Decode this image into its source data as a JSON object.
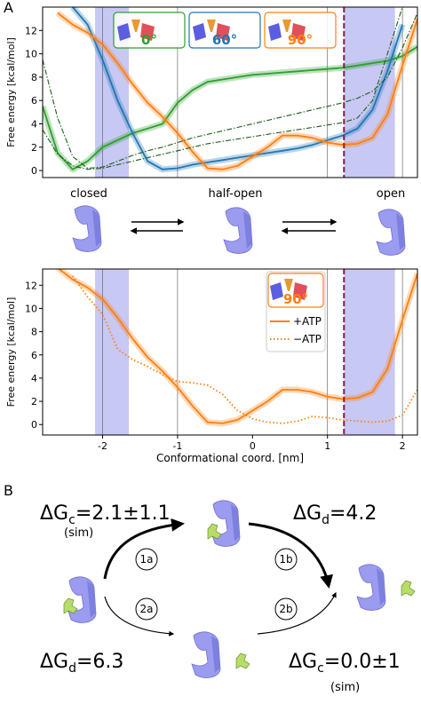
{
  "panel_labels": [
    "A",
    "B"
  ],
  "chart_data": [
    {
      "type": "line",
      "ylabel": "Free energy [kcal/mol]",
      "x": [
        -2.8,
        -2.6,
        -2.4,
        -2.2,
        -2.0,
        -1.8,
        -1.6,
        -1.4,
        -1.2,
        -1.0,
        -0.8,
        -0.6,
        -0.4,
        -0.2,
        0,
        0.2,
        0.4,
        0.6,
        0.8,
        1.0,
        1.2,
        1.4,
        1.6,
        1.8,
        2.0,
        2.2
      ],
      "xlim": [
        -2.8,
        2.2
      ],
      "ylim": [
        -0.6,
        14
      ],
      "yticks": [
        0,
        2,
        4,
        6,
        8,
        10,
        12
      ],
      "shaded_regions": [
        [
          -2.1,
          -1.65
        ],
        [
          1.22,
          1.9
        ]
      ],
      "vlines": [
        -2,
        -1,
        1,
        2
      ],
      "highlight_line": 1.22,
      "series": [
        {
          "name": "0°",
          "color": "#2ca02c",
          "dash": "solid",
          "values": [
            5.5,
            1.5,
            0.1,
            0.8,
            2.0,
            2.6,
            3.2,
            3.6,
            4.0,
            5.8,
            6.9,
            7.6,
            7.8,
            8.0,
            8.2,
            8.3,
            8.4,
            8.5,
            8.6,
            8.7,
            8.8,
            9.0,
            9.2,
            9.4,
            9.8,
            10.6
          ]
        },
        {
          "name": "60°",
          "color": "#1f77b4",
          "dash": "solid",
          "values": [
            null,
            null,
            14,
            12.5,
            9.5,
            6.0,
            3.2,
            0.8,
            0.1,
            0.2,
            0.5,
            0.7,
            0.9,
            1.1,
            1.3,
            1.5,
            1.7,
            1.9,
            2.2,
            2.6,
            3.0,
            3.6,
            5.2,
            8.5,
            12.5,
            null
          ]
        },
        {
          "name": "90°",
          "color": "#ff7f0e",
          "dash": "solid",
          "values": [
            null,
            13.5,
            12.5,
            11.8,
            10.8,
            9.2,
            7.4,
            5.8,
            4.6,
            3.2,
            1.6,
            0.2,
            0.1,
            0.4,
            1.2,
            2.0,
            3.0,
            3.0,
            2.8,
            2.4,
            2.2,
            2.3,
            2.8,
            4.8,
            9.0,
            13.0
          ]
        },
        {
          "color": "#1a5e1a",
          "dash": "dashdot",
          "values": [
            9.5,
            4.5,
            1.2,
            0.2,
            0.3,
            0.8,
            1.3,
            1.7,
            2.0,
            2.4,
            2.8,
            3.1,
            3.4,
            3.7,
            4.0,
            4.3,
            4.6,
            4.9,
            5.2,
            5.5,
            5.8,
            6.2,
            6.8,
            8.0,
            10.5,
            13.5
          ]
        },
        {
          "color": "#1a5e1a",
          "dash": "dashdot",
          "values": [
            3.5,
            1.4,
            0.4,
            0.1,
            0.2,
            0.5,
            0.8,
            1.1,
            1.4,
            1.7,
            2.0,
            2.3,
            2.5,
            2.7,
            2.9,
            3.1,
            3.3,
            3.5,
            3.7,
            3.9,
            4.1,
            4.5,
            6.0,
            10.0,
            14,
            null
          ]
        }
      ]
    },
    {
      "type": "line",
      "ylabel": "Free energy [kcal/mol]",
      "xlabel": "Conformational coord. [nm]",
      "legend_title": "90°",
      "x": [
        -2.8,
        -2.6,
        -2.4,
        -2.2,
        -2.0,
        -1.8,
        -1.6,
        -1.4,
        -1.2,
        -1.0,
        -0.8,
        -0.6,
        -0.4,
        -0.2,
        0,
        0.2,
        0.4,
        0.6,
        0.8,
        1.0,
        1.2,
        1.4,
        1.6,
        1.8,
        2.0,
        2.2
      ],
      "xlim": [
        -2.8,
        2.2
      ],
      "ylim": [
        -0.9,
        13.4
      ],
      "xticks": [
        -2,
        -1,
        0,
        1,
        2
      ],
      "yticks": [
        0,
        2,
        4,
        6,
        8,
        10,
        12
      ],
      "shaded_regions": [
        [
          -2.1,
          -1.65
        ],
        [
          1.22,
          1.9
        ]
      ],
      "vlines": [
        -2,
        -1,
        1,
        2
      ],
      "highlight_line": 1.22,
      "series": [
        {
          "name": "+ATP",
          "color": "#ff7f0e",
          "dash": "solid",
          "values": [
            null,
            13.5,
            12.5,
            11.8,
            10.8,
            9.2,
            7.4,
            5.8,
            4.6,
            3.2,
            1.6,
            0.2,
            0.1,
            0.4,
            1.2,
            2.0,
            3.0,
            3.0,
            2.8,
            2.4,
            2.2,
            2.3,
            2.8,
            4.8,
            9.0,
            13.0
          ]
        },
        {
          "name": "−ATP",
          "color": "#ff7f0e",
          "dash": "dotted",
          "values": [
            null,
            null,
            12.8,
            11.0,
            9.5,
            6.5,
            5.6,
            5.0,
            4.3,
            3.7,
            3.6,
            3.4,
            2.6,
            1.2,
            0.5,
            0.2,
            0.1,
            0.3,
            0.7,
            0.6,
            0.4,
            0.3,
            0.2,
            0.3,
            0.8,
            3.0
          ]
        }
      ]
    }
  ],
  "states": [
    "closed",
    "half-open",
    "open"
  ],
  "cycle": {
    "dg_top_left": {
      "symbol": "ΔG",
      "sub": "c",
      "rest": "=2.1±1.1",
      "note": "(sim)"
    },
    "dg_top_right": {
      "symbol": "ΔG",
      "sub": "d",
      "rest": "=4.2"
    },
    "dg_bottom_left": {
      "symbol": "ΔG",
      "sub": "d",
      "rest": "=6.3"
    },
    "dg_bottom_right": {
      "symbol": "ΔG",
      "sub": "c",
      "rest": "=0.0±1",
      "note": "(sim)"
    },
    "steps": [
      "1a",
      "1b",
      "2a",
      "2b"
    ]
  }
}
